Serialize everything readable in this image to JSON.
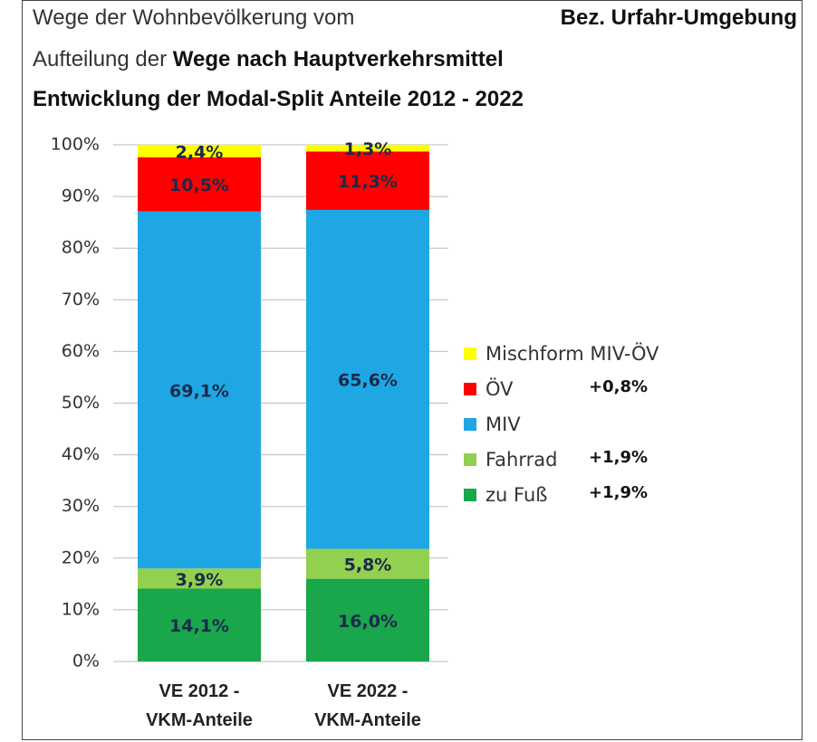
{
  "chart_data": {
    "type": "stacked_bar",
    "title": {
      "line1": "Wege der Wohnbevölkerung vom",
      "line1_right": "Bez. Urfahr-Umgebung",
      "line2_prefix": "Aufteilung der",
      "line2_bold": "Wege nach Hauptverkehrsmittel",
      "line3": "Entwicklung der Modal-Split Anteile 2012 - 2022"
    },
    "categories": [
      "VE 2012 - VKM-Anteile",
      "VE 2022 - VKM-Anteile"
    ],
    "series": [
      {
        "name": "zu Fuß",
        "color": "#1aa64a",
        "values": [
          14.1,
          16.0
        ],
        "value_labels": [
          "14,1%",
          "16,0%"
        ],
        "annotation": "+1,9%"
      },
      {
        "name": "Fahrrad",
        "color": "#92d050",
        "values": [
          3.9,
          5.8
        ],
        "value_labels": [
          "3,9%",
          "5,8%"
        ],
        "annotation": "+1,9%"
      },
      {
        "name": "MIV",
        "color": "#1ea7e4",
        "values": [
          69.1,
          65.6
        ],
        "value_labels": [
          "69,1%",
          "65,6%"
        ]
      },
      {
        "name": "ÖV",
        "color": "#ff0000",
        "values": [
          10.5,
          11.3
        ],
        "value_labels": [
          "10,5%",
          "11,3%"
        ],
        "annotation": "+0,8%"
      },
      {
        "name": "Mischform MIV-ÖV",
        "color": "#ffff00",
        "values": [
          2.4,
          1.3
        ],
        "value_labels": [
          "2,4%",
          "1,3%"
        ]
      }
    ],
    "ylim": [
      0,
      100
    ],
    "yticks": [
      {
        "value": 0,
        "label": "0%"
      },
      {
        "value": 10,
        "label": "10%"
      },
      {
        "value": 20,
        "label": "20%"
      },
      {
        "value": 30,
        "label": "30%"
      },
      {
        "value": 40,
        "label": "40%"
      },
      {
        "value": 50,
        "label": "50%"
      },
      {
        "value": 60,
        "label": "60%"
      },
      {
        "value": 70,
        "label": "70%"
      },
      {
        "value": 80,
        "label": "80%"
      },
      {
        "value": 90,
        "label": "90%"
      },
      {
        "value": 100,
        "label": "100%"
      }
    ],
    "legend": "right"
  }
}
